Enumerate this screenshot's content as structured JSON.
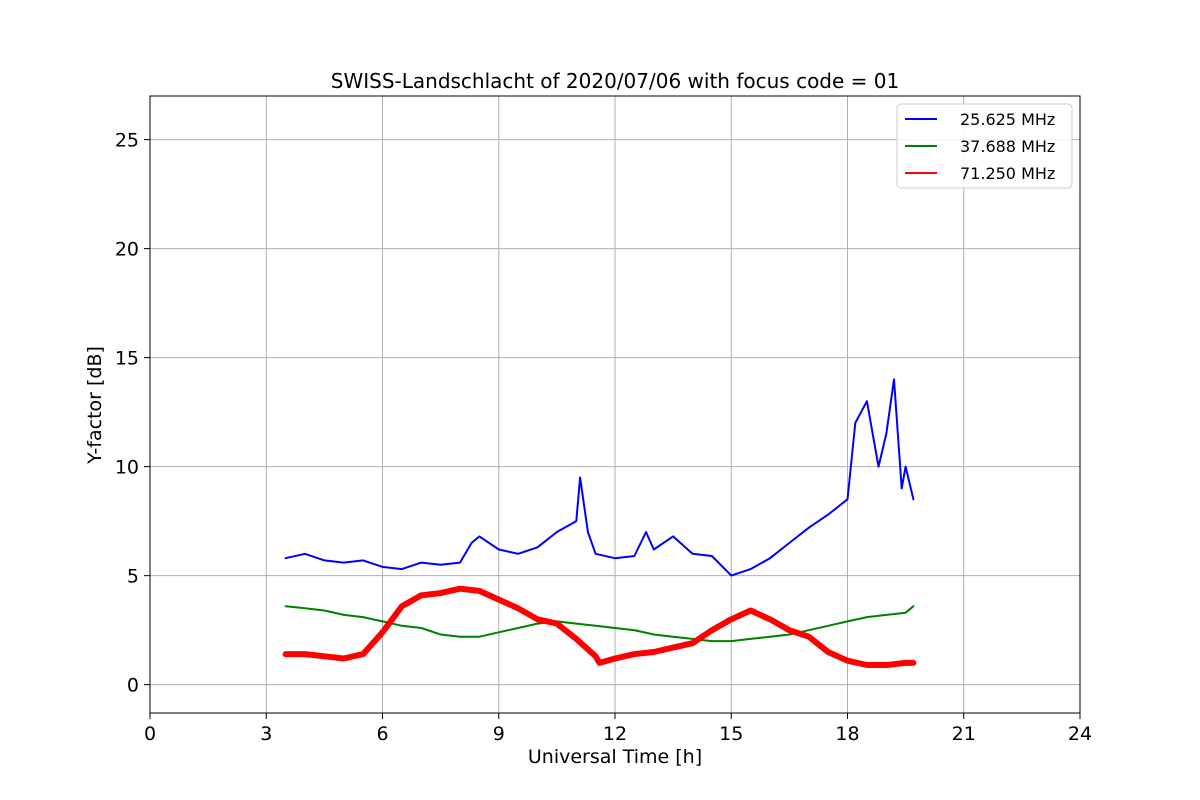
{
  "chart_data": {
    "type": "line",
    "title": "SWISS-Landschlacht of 2020/07/06 with focus code = 01",
    "xlabel": "Universal Time [h]",
    "ylabel": "Y-factor [dB]",
    "xlim": [
      0,
      24
    ],
    "ylim": [
      -1.3,
      27
    ],
    "xticks": [
      0,
      3,
      6,
      9,
      12,
      15,
      18,
      21,
      24
    ],
    "yticks": [
      0,
      5,
      10,
      15,
      20,
      25
    ],
    "grid": true,
    "legend_position": "top-right",
    "series": [
      {
        "name": "25.625 MHz",
        "color": "#0000ff",
        "x": [
          3.5,
          4.0,
          4.5,
          5.0,
          5.5,
          6.0,
          6.5,
          7.0,
          7.5,
          8.0,
          8.3,
          8.5,
          9.0,
          9.5,
          10.0,
          10.5,
          11.0,
          11.1,
          11.3,
          11.5,
          12.0,
          12.5,
          12.8,
          13.0,
          13.5,
          14.0,
          14.5,
          15.0,
          15.5,
          16.0,
          16.5,
          17.0,
          17.5,
          18.0,
          18.2,
          18.5,
          18.8,
          19.0,
          19.2,
          19.4,
          19.5,
          19.7
        ],
        "y": [
          5.8,
          6.0,
          5.7,
          5.6,
          5.7,
          5.4,
          5.3,
          5.6,
          5.5,
          5.6,
          6.5,
          6.8,
          6.2,
          6.0,
          6.3,
          7.0,
          7.5,
          9.5,
          7.0,
          6.0,
          5.8,
          5.9,
          7.0,
          6.2,
          6.8,
          6.0,
          5.9,
          5.0,
          5.3,
          5.8,
          6.5,
          7.2,
          7.8,
          8.5,
          12.0,
          13.0,
          10.0,
          11.5,
          14.0,
          9.0,
          10.0,
          8.5
        ]
      },
      {
        "name": "37.688 MHz",
        "color": "#008000",
        "x": [
          3.5,
          4.0,
          4.5,
          5.0,
          5.5,
          6.0,
          6.5,
          7.0,
          7.5,
          8.0,
          8.5,
          9.0,
          9.5,
          10.0,
          10.5,
          11.0,
          11.5,
          12.0,
          12.5,
          13.0,
          13.5,
          14.0,
          14.5,
          15.0,
          15.5,
          16.0,
          16.5,
          17.0,
          17.5,
          18.0,
          18.5,
          19.0,
          19.5,
          19.7
        ],
        "y": [
          3.6,
          3.5,
          3.4,
          3.2,
          3.1,
          2.9,
          2.7,
          2.6,
          2.3,
          2.2,
          2.2,
          2.4,
          2.6,
          2.8,
          2.9,
          2.8,
          2.7,
          2.6,
          2.5,
          2.3,
          2.2,
          2.1,
          2.0,
          2.0,
          2.1,
          2.2,
          2.3,
          2.5,
          2.7,
          2.9,
          3.1,
          3.2,
          3.3,
          3.6
        ]
      },
      {
        "name": "71.250 MHz",
        "color": "#ff0000",
        "x": [
          3.5,
          4.0,
          4.5,
          5.0,
          5.5,
          6.0,
          6.5,
          7.0,
          7.5,
          8.0,
          8.5,
          9.0,
          9.5,
          10.0,
          10.5,
          11.0,
          11.5,
          11.6,
          12.0,
          12.5,
          13.0,
          13.5,
          14.0,
          14.5,
          15.0,
          15.5,
          16.0,
          16.5,
          17.0,
          17.5,
          18.0,
          18.5,
          19.0,
          19.5,
          19.7
        ],
        "y": [
          1.4,
          1.4,
          1.3,
          1.2,
          1.4,
          2.4,
          3.6,
          4.1,
          4.2,
          4.4,
          4.3,
          3.9,
          3.5,
          3.0,
          2.8,
          2.1,
          1.3,
          1.0,
          1.2,
          1.4,
          1.5,
          1.7,
          1.9,
          2.5,
          3.0,
          3.4,
          3.0,
          2.5,
          2.2,
          1.5,
          1.1,
          0.9,
          0.9,
          1.0,
          1.0
        ]
      }
    ]
  }
}
